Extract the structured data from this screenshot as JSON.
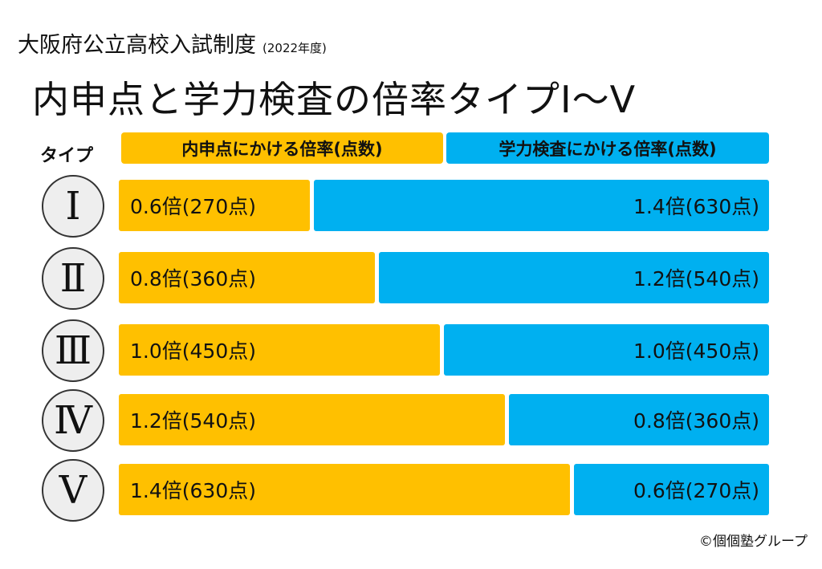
{
  "subtitle": "大阪府公立高校入試制度",
  "year": "(2022年度)",
  "title": "内申点と学力検査の倍率タイプⅠ～Ⅴ",
  "copyright": "©個個塾グループ",
  "chart_data": {
    "type": "bar",
    "stacked": true,
    "orientation": "horizontal",
    "type_header": "タイプ",
    "categories": [
      "Ⅰ",
      "Ⅱ",
      "Ⅲ",
      "Ⅳ",
      "Ⅴ"
    ],
    "series": [
      {
        "name": "内申点にかける倍率(点数)",
        "color": "#FFC000",
        "values": [
          0.6,
          0.8,
          1.0,
          1.2,
          1.4
        ],
        "labels": [
          "0.6倍(270点)",
          "0.8倍(360点)",
          "1.0倍(450点)",
          "1.2倍(540点)",
          "1.4倍(630点)"
        ]
      },
      {
        "name": "学力検査にかける倍率(点数)",
        "color": "#00B0F0",
        "values": [
          1.4,
          1.2,
          1.0,
          0.8,
          0.6
        ],
        "labels": [
          "1.4倍(630点)",
          "1.2倍(540点)",
          "1.0倍(450点)",
          "0.8倍(360点)",
          "0.6倍(270点)"
        ]
      }
    ],
    "total": 2.0
  }
}
